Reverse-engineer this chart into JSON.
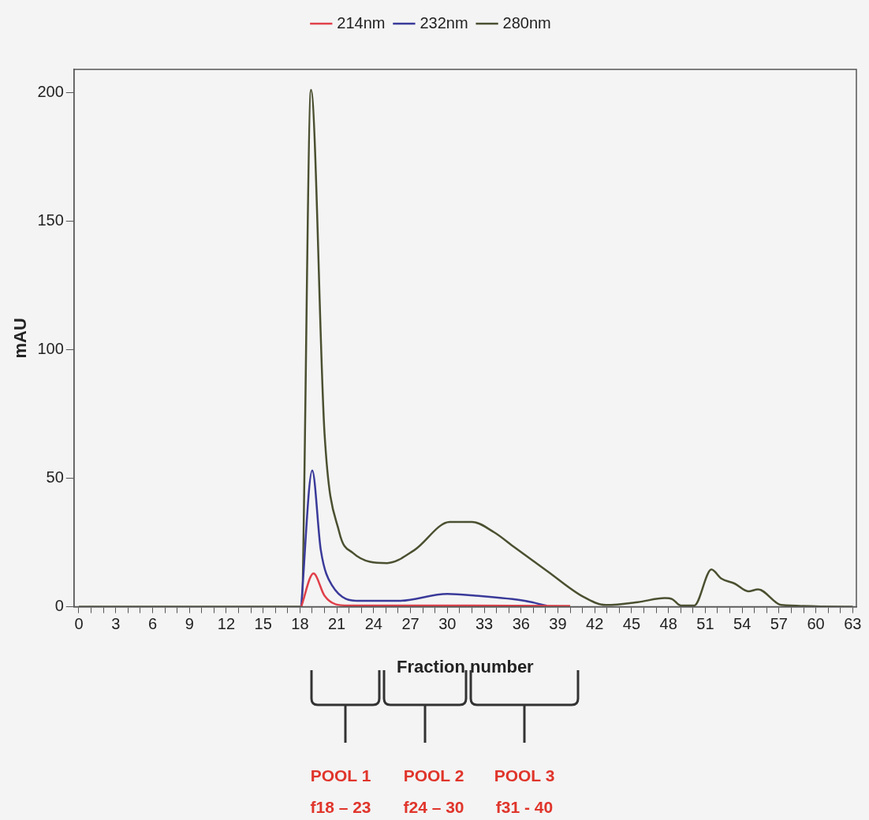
{
  "chart_data": {
    "type": "line",
    "xlabel": "Fraction number",
    "ylabel": "mAU",
    "legend": "top",
    "marker": "none",
    "line_style": "solid",
    "xlim": [
      -0.4,
      63.3
    ],
    "ylim": [
      0,
      209
    ],
    "xticks": [
      0,
      {
        "value": 1,
        "label": null
      },
      {
        "value": 2,
        "label": null
      },
      3,
      {
        "value": 4,
        "label": null
      },
      {
        "value": 5,
        "label": null
      },
      6,
      {
        "value": 7,
        "label": null
      },
      {
        "value": 8,
        "label": null
      },
      9,
      {
        "value": 10,
        "label": null
      },
      {
        "value": 11,
        "label": null
      },
      12,
      {
        "value": 13,
        "label": null
      },
      {
        "value": 14,
        "label": null
      },
      15,
      {
        "value": 16,
        "label": null
      },
      {
        "value": 17,
        "label": null
      },
      18,
      {
        "value": 19,
        "label": null
      },
      {
        "value": 20,
        "label": null
      },
      21,
      {
        "value": 22,
        "label": null
      },
      {
        "value": 23,
        "label": null
      },
      24,
      {
        "value": 25,
        "label": null
      },
      {
        "value": 26,
        "label": null
      },
      27,
      {
        "value": 28,
        "label": null
      },
      {
        "value": 29,
        "label": null
      },
      30,
      {
        "value": 31,
        "label": null
      },
      {
        "value": 32,
        "label": null
      },
      33,
      {
        "value": 34,
        "label": null
      },
      {
        "value": 35,
        "label": null
      },
      36,
      {
        "value": 37,
        "label": null
      },
      {
        "value": 38,
        "label": null
      },
      39,
      {
        "value": 40,
        "label": null
      },
      {
        "value": 41,
        "label": null
      },
      42,
      {
        "value": 43,
        "label": null
      },
      {
        "value": 44,
        "label": null
      },
      45,
      {
        "value": 46,
        "label": null
      },
      {
        "value": 47,
        "label": null
      },
      48,
      {
        "value": 49,
        "label": null
      },
      {
        "value": 50,
        "label": null
      },
      51,
      {
        "value": 52,
        "label": null
      },
      {
        "value": 53,
        "label": null
      },
      54,
      {
        "value": 55,
        "label": null
      },
      {
        "value": 56,
        "label": null
      },
      57,
      {
        "value": 58,
        "label": null
      },
      {
        "value": 59,
        "label": null
      },
      60,
      {
        "value": 61,
        "label": null
      },
      {
        "value": 62,
        "label": null
      },
      63
    ],
    "yticks": [
      0,
      50,
      100,
      150,
      200
    ],
    "series": [
      {
        "name": "214nm",
        "color": "#e0404a",
        "x": [
          18.1,
          19.1,
          20.0,
          20.9,
          22,
          30,
          40
        ],
        "values": [
          0,
          13,
          4.3,
          1,
          0.5,
          0.5,
          0.3
        ]
      },
      {
        "name": "232nm",
        "color": "#3a3a9a",
        "x": [
          18.1,
          19.0,
          19.7,
          20.6,
          22.9,
          26,
          30,
          32.3,
          36.3,
          38.1
        ],
        "values": [
          0,
          53,
          22,
          8.4,
          2.3,
          2.3,
          5,
          4.3,
          2.3,
          0.4
        ]
      },
      {
        "name": "280nm",
        "color": "#4a5030",
        "x": [
          0,
          18.1,
          18.9,
          20.0,
          21.2,
          22.3,
          25.1,
          27.3,
          30.2,
          32.0,
          33.8,
          35.5,
          38.1,
          41.1,
          42.9,
          45.5,
          47.7,
          48.3,
          49.0,
          50.1,
          51.5,
          52.3,
          53.4,
          54.5,
          55.3,
          57.2,
          63
        ],
        "values": [
          0,
          0,
          201,
          67.5,
          29,
          21,
          17,
          22,
          33,
          33,
          29,
          23,
          14,
          3.8,
          0.7,
          1.8,
          3.4,
          3,
          0.5,
          0.5,
          14.5,
          11,
          9,
          6,
          6.8,
          0.7,
          0
        ]
      }
    ],
    "annotations": [
      "POOL 1",
      "f18 – 23",
      "POOL 2",
      "f24 – 30",
      "POOL 3",
      "f31 - 40"
    ]
  }
}
